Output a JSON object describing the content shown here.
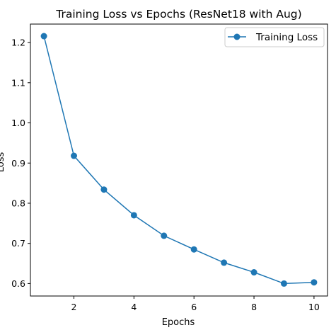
{
  "chart_data": {
    "type": "line",
    "title": "Training Loss vs Epochs (ResNet18 with Aug)",
    "xlabel": "Epochs",
    "ylabel": "Loss",
    "xlim": [
      0.55,
      10.45
    ],
    "ylim": [
      0.569,
      1.246
    ],
    "xticks": [
      2,
      4,
      6,
      8,
      10
    ],
    "yticks": [
      0.6,
      0.7,
      0.8,
      0.9,
      1.0,
      1.1,
      1.2
    ],
    "grid": false,
    "legend_position": "top-right",
    "series": [
      {
        "name": "Training Loss",
        "color": "#1f77b4",
        "marker": "circle",
        "x": [
          1,
          2,
          3,
          4,
          5,
          6,
          7,
          8,
          9,
          10
        ],
        "y": [
          1.216,
          0.918,
          0.834,
          0.77,
          0.719,
          0.685,
          0.652,
          0.628,
          0.6,
          0.603
        ]
      }
    ]
  }
}
